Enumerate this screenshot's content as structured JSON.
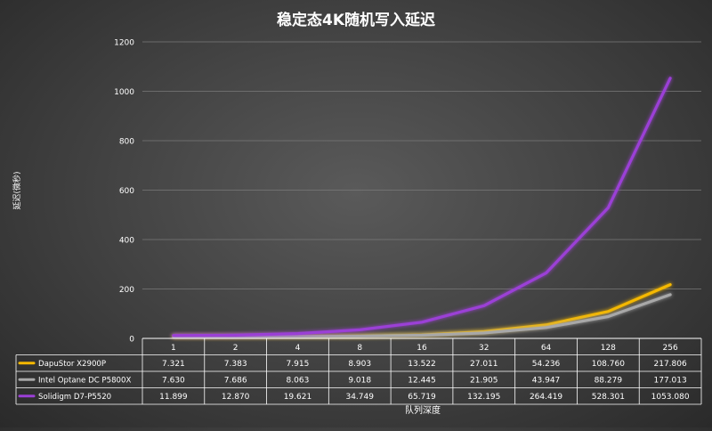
{
  "chart_data": {
    "type": "line",
    "title": "稳定态4K随机写入延迟",
    "ylabel": "延迟(微秒)",
    "xlabel": "队列深度",
    "categories": [
      "1",
      "2",
      "4",
      "8",
      "16",
      "32",
      "64",
      "128",
      "256"
    ],
    "yticks": [
      "0",
      "200",
      "400",
      "600",
      "800",
      "1000",
      "1200"
    ],
    "ylim": [
      0,
      1200
    ],
    "grid": true,
    "legend": "data-table",
    "series": [
      {
        "name": "DapuStor X2900P",
        "color": "#f5b800",
        "values": [
          7.321,
          7.383,
          7.915,
          8.903,
          13.522,
          27.011,
          54.236,
          108.76,
          217.806
        ],
        "labels": [
          "7.321",
          "7.383",
          "7.915",
          "8.903",
          "13.522",
          "27.011",
          "54.236",
          "108.760",
          "217.806"
        ]
      },
      {
        "name": "Intel Optane DC P5800X",
        "color": "#a8a8a8",
        "values": [
          7.63,
          7.686,
          8.063,
          9.018,
          12.445,
          21.905,
          43.947,
          88.279,
          177.013
        ],
        "labels": [
          "7.630",
          "7.686",
          "8.063",
          "9.018",
          "12.445",
          "21.905",
          "43.947",
          "88.279",
          "177.013"
        ]
      },
      {
        "name": "Solidigm D7-P5520",
        "color": "#9b3fd6",
        "values": [
          11.899,
          12.87,
          19.621,
          34.749,
          65.719,
          132.195,
          264.419,
          528.301,
          1053.08
        ],
        "labels": [
          "11.899",
          "12.870",
          "19.621",
          "34.749",
          "65.719",
          "132.195",
          "264.419",
          "528.301",
          "1053.080"
        ]
      }
    ]
  }
}
